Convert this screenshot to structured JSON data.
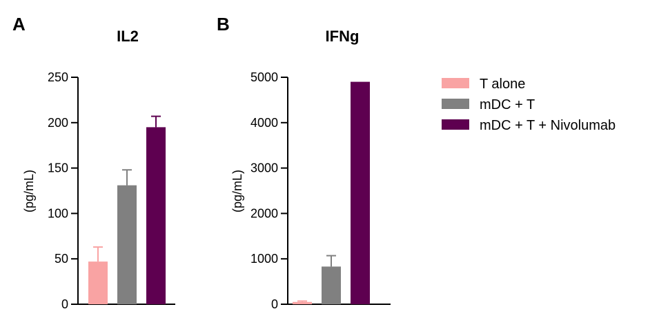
{
  "colors": {
    "t_alone": "#F9A3A3",
    "mdc_t": "#808080",
    "mdc_t_nivo": "#5E0050",
    "axis": "#000000"
  },
  "legend": {
    "items": [
      {
        "label": "T alone",
        "color": "#F9A3A3"
      },
      {
        "label": "mDC + T",
        "color": "#808080"
      },
      {
        "label": "mDC + T + Nivolumab",
        "color": "#5E0050"
      }
    ]
  },
  "chart_data": [
    {
      "panel": "A",
      "type": "bar",
      "title": "IL2",
      "xlabel": "",
      "ylabel": "(pg/mL)",
      "ylim": [
        0,
        250
      ],
      "yticks": [
        0,
        50,
        100,
        150,
        200,
        250
      ],
      "grid": false,
      "legend_position": "right",
      "categories": [
        "T alone",
        "mDC + T",
        "mDC + T + Nivolumab"
      ],
      "values": [
        47,
        131,
        195
      ],
      "error_upper": [
        16,
        17,
        12
      ]
    },
    {
      "panel": "B",
      "type": "bar",
      "title": "IFNg",
      "xlabel": "",
      "ylabel": "(pg/mL)",
      "ylim": [
        0,
        5000
      ],
      "yticks": [
        0,
        1000,
        2000,
        3000,
        4000,
        5000
      ],
      "grid": false,
      "legend_position": "right",
      "categories": [
        "T alone",
        "mDC + T",
        "mDC + T + Nivolumab"
      ],
      "values": [
        50,
        830,
        4900
      ],
      "error_upper": [
        20,
        240,
        0
      ]
    }
  ]
}
